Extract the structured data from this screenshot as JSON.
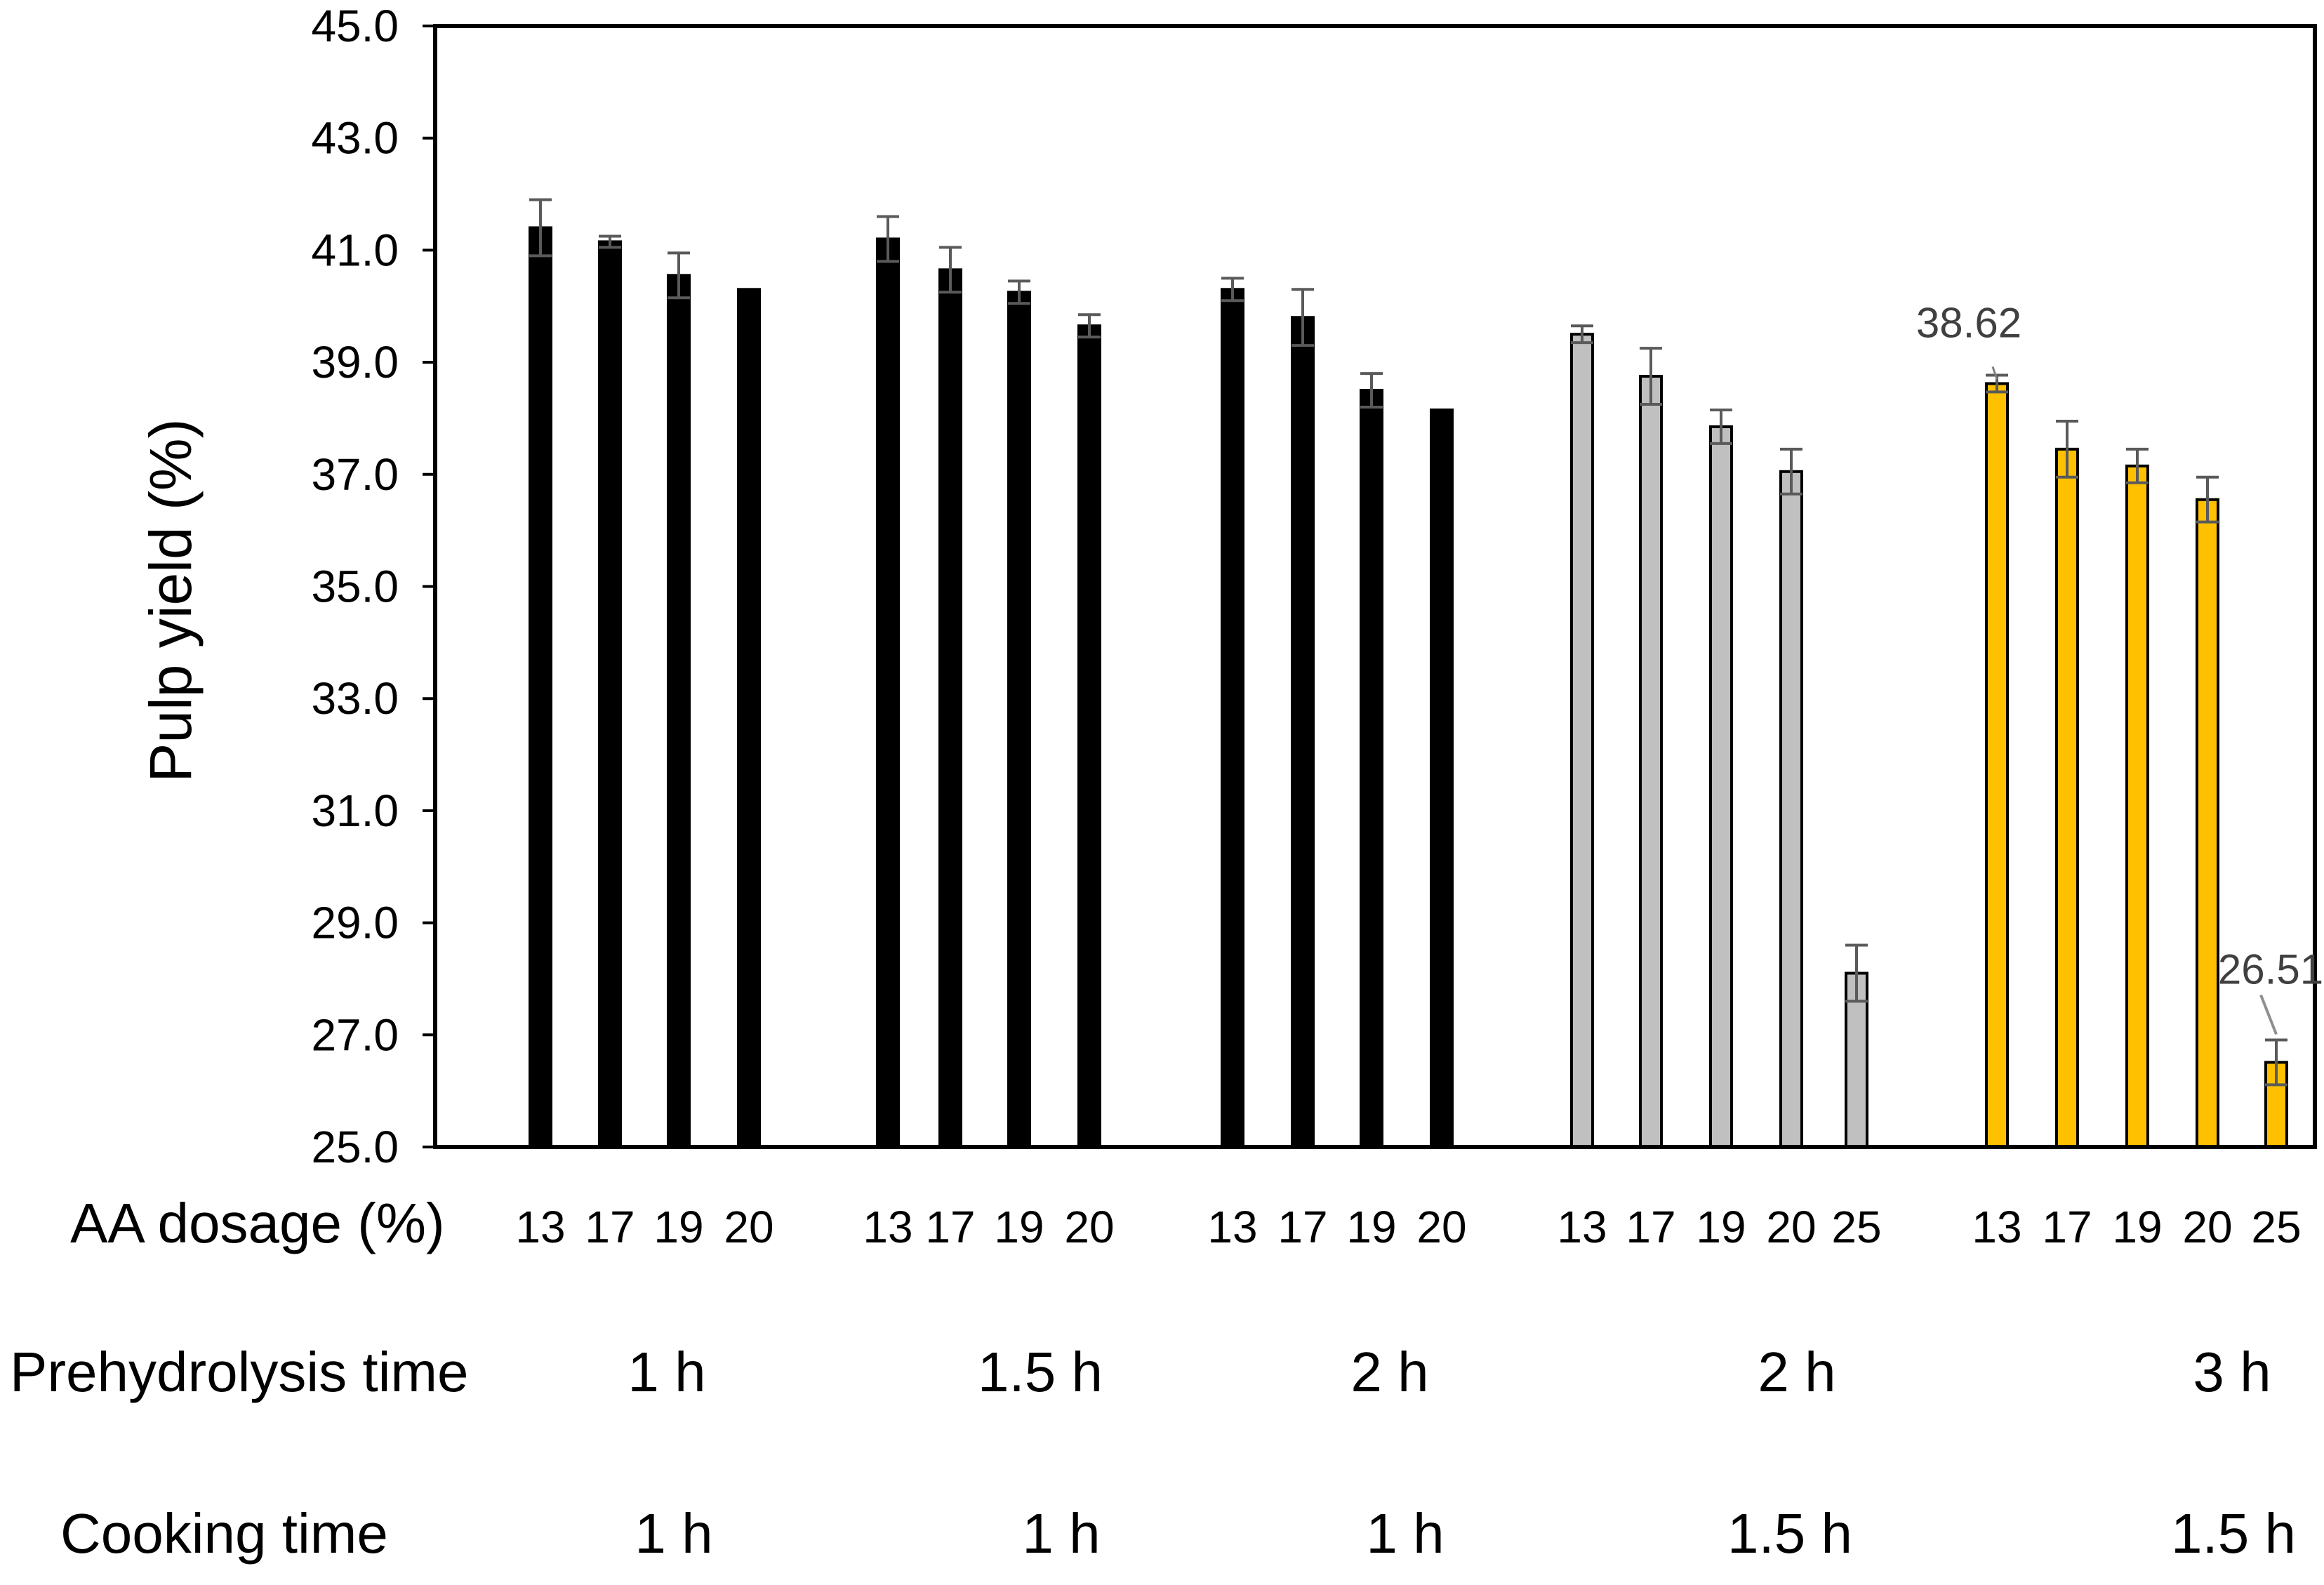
{
  "chart_data": {
    "type": "bar",
    "ylabel": "Pulp yield (%)",
    "ylim": [
      25.0,
      45.0
    ],
    "yticks": [
      "45.0",
      "43.0",
      "41.0",
      "39.0",
      "37.0",
      "35.0",
      "33.0",
      "31.0",
      "29.0",
      "27.0",
      "25.0"
    ],
    "grid": false,
    "row_labels": {
      "dosage": "AA dosage (%)",
      "prehydrolysis": "Prehydrolysis time",
      "cooking": "Cooking time"
    },
    "colors": {
      "black": "#000000",
      "grey": "#c0c0c0",
      "gold": "#ffc000",
      "error_bar": "#5a5a5a"
    },
    "groups": [
      {
        "prehydrolysis_time": "1 h",
        "cooking_time": "1 h",
        "color": "black",
        "bars": [
          {
            "dosage": "13",
            "value": 41.4,
            "err": 0.5
          },
          {
            "dosage": "17",
            "value": 41.15,
            "err": 0.1
          },
          {
            "dosage": "19",
            "value": 40.55,
            "err": 0.4
          },
          {
            "dosage": "20",
            "value": 40.3,
            "err": 0
          }
        ]
      },
      {
        "prehydrolysis_time": "1.5 h",
        "cooking_time": "1 h",
        "color": "black",
        "bars": [
          {
            "dosage": "13",
            "value": 41.2,
            "err": 0.4
          },
          {
            "dosage": "17",
            "value": 40.65,
            "err": 0.4
          },
          {
            "dosage": "19",
            "value": 40.25,
            "err": 0.2
          },
          {
            "dosage": "20",
            "value": 39.65,
            "err": 0.2
          }
        ]
      },
      {
        "prehydrolysis_time": "2 h",
        "cooking_time": "1 h",
        "color": "black",
        "bars": [
          {
            "dosage": "13",
            "value": 40.3,
            "err": 0.2
          },
          {
            "dosage": "17",
            "value": 39.8,
            "err": 0.5
          },
          {
            "dosage": "19",
            "value": 38.5,
            "err": 0.3
          },
          {
            "dosage": "20",
            "value": 38.15,
            "err": 0
          }
        ]
      },
      {
        "prehydrolysis_time": "2 h",
        "cooking_time": "1.5 h",
        "color": "grey",
        "bars": [
          {
            "dosage": "13",
            "value": 39.5,
            "err": 0.15
          },
          {
            "dosage": "17",
            "value": 38.75,
            "err": 0.5
          },
          {
            "dosage": "19",
            "value": 37.85,
            "err": 0.3
          },
          {
            "dosage": "20",
            "value": 37.05,
            "err": 0.4
          },
          {
            "dosage": "25",
            "value": 28.1,
            "err": 0.5
          }
        ]
      },
      {
        "prehydrolysis_time": "3 h",
        "cooking_time": "1.5 h",
        "color": "gold",
        "bars": [
          {
            "dosage": "13",
            "value": 38.62,
            "err": 0.15
          },
          {
            "dosage": "17",
            "value": 37.45,
            "err": 0.5
          },
          {
            "dosage": "19",
            "value": 37.15,
            "err": 0.3
          },
          {
            "dosage": "20",
            "value": 36.55,
            "err": 0.4
          },
          {
            "dosage": "25",
            "value": 26.51,
            "err": 0.4
          }
        ]
      }
    ],
    "annotations": [
      {
        "text": "38.62",
        "group": 4,
        "bar": 0
      },
      {
        "text": "26.51",
        "group": 4,
        "bar": 4
      }
    ]
  }
}
